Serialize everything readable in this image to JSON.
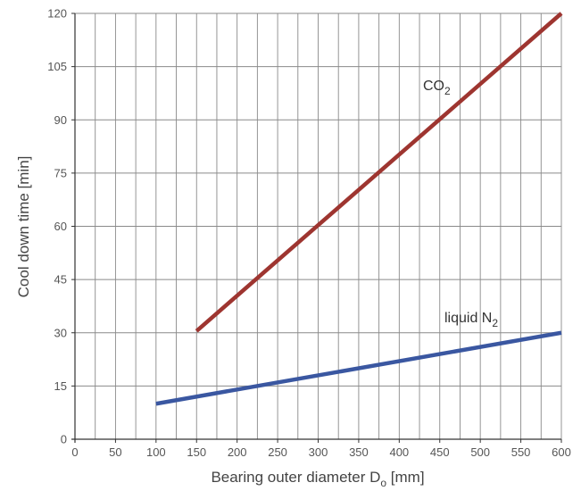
{
  "chart_data": {
    "type": "line",
    "xlabel": {
      "main": "Bearing outer diameter D",
      "sub": "o",
      "unit": " [mm]"
    },
    "ylabel": "Cool down time [min]",
    "xlim": [
      0,
      600
    ],
    "ylim": [
      0,
      120
    ],
    "x_ticks": [
      0,
      50,
      100,
      150,
      200,
      250,
      300,
      350,
      400,
      450,
      500,
      550,
      600
    ],
    "y_ticks": [
      0,
      15,
      30,
      45,
      60,
      75,
      90,
      105,
      120
    ],
    "grid": true,
    "series": [
      {
        "name": "CO2",
        "label_main": "CO",
        "label_sub": "2",
        "color": "#9e3530",
        "x": [
          150,
          600
        ],
        "y": [
          30.5,
          120
        ]
      },
      {
        "name": "liquid N2",
        "label_main": "liquid N",
        "label_sub": "2",
        "color": "#3a57a1",
        "x": [
          100,
          600
        ],
        "y": [
          10,
          30
        ]
      }
    ]
  }
}
